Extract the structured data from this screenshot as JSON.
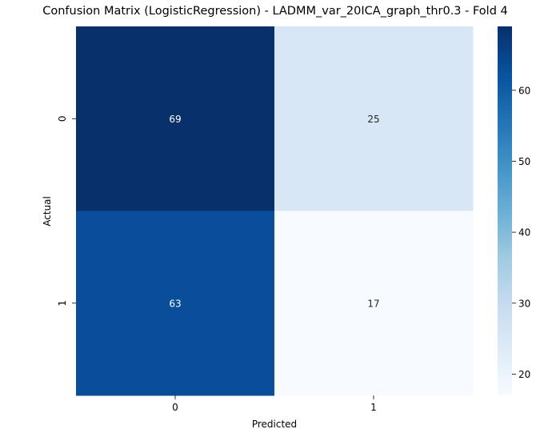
{
  "chart_data": {
    "type": "heatmap",
    "title": "Confusion Matrix (LogisticRegression) - LADMM_var_20ICA_graph_thr0.3 - Fold 4",
    "xlabel": "Predicted",
    "ylabel": "Actual",
    "x_categories": [
      "0",
      "1"
    ],
    "y_categories": [
      "0",
      "1"
    ],
    "values": [
      [
        69,
        25
      ],
      [
        63,
        17
      ]
    ],
    "colormap": "Blues",
    "color_range": [
      17,
      69
    ],
    "colorbar_ticks": [
      20,
      30,
      40,
      50,
      60
    ],
    "annotate": true
  }
}
